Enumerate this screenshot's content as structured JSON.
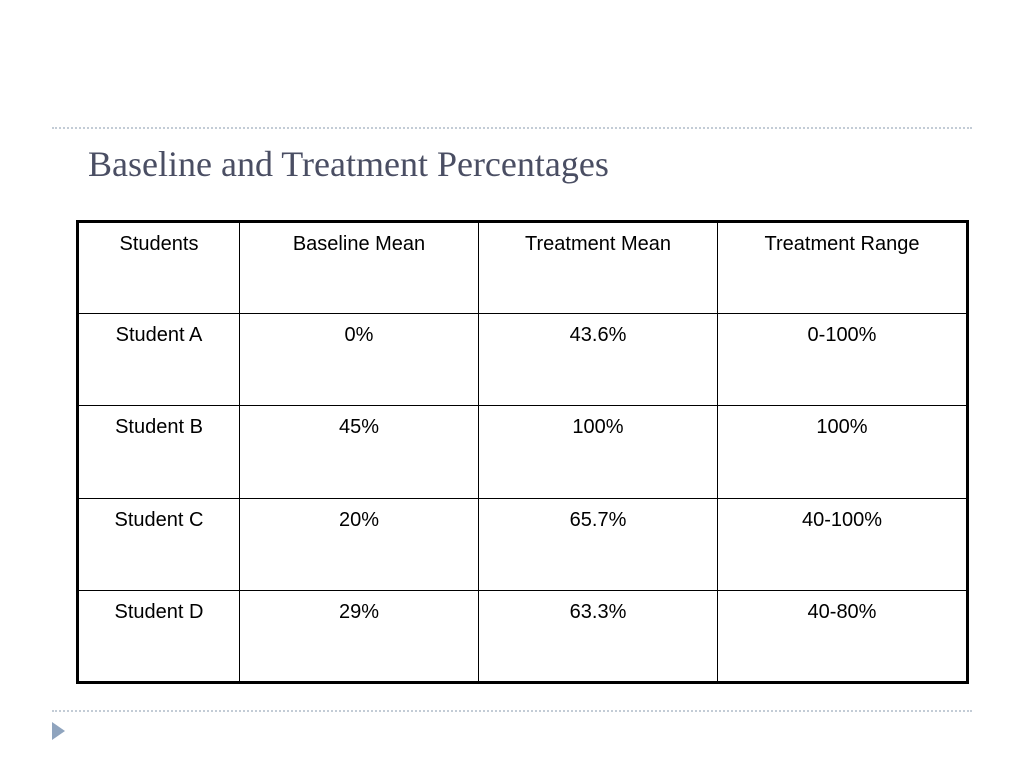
{
  "slide": {
    "title": "Baseline and Treatment Percentages"
  },
  "table": {
    "headers": [
      "Students",
      "Baseline Mean",
      "Treatment Mean",
      "Treatment Range"
    ],
    "rows": [
      [
        "Student A",
        "0%",
        "43.6%",
        "0-100%"
      ],
      [
        "Student B",
        "45%",
        "100%",
        "100%"
      ],
      [
        "Student C",
        "20%",
        "65.7%",
        "40-100%"
      ],
      [
        "Student D",
        "29%",
        "63.3%",
        "40-80%"
      ]
    ]
  },
  "colors": {
    "title": "#4a4e63",
    "divider": "#c3ccd6",
    "arrow": "#8fa4be"
  },
  "icons": {
    "nav": "triangle-right-icon"
  }
}
